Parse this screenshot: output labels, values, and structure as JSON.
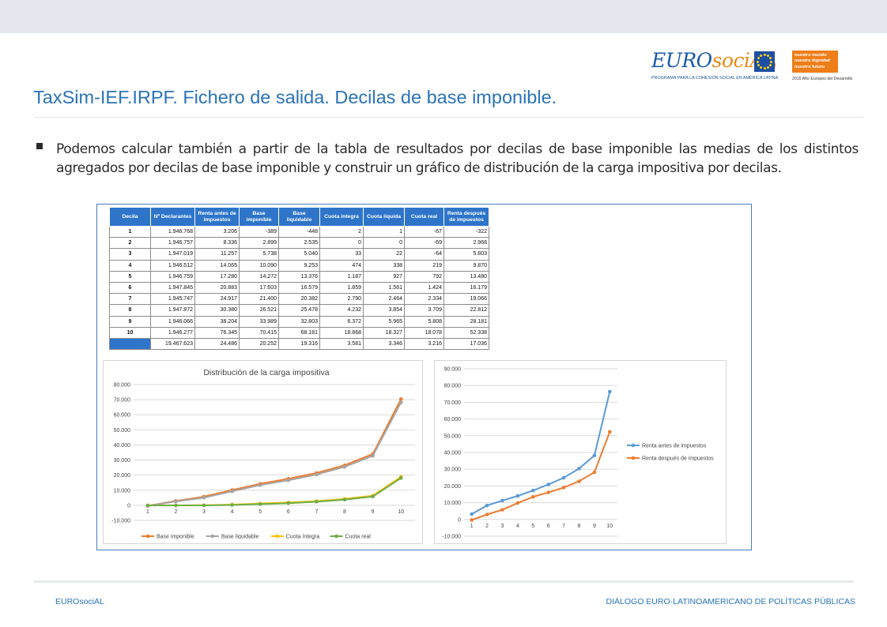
{
  "header": {
    "logo_word_1": "EURO",
    "logo_word_2": "sociAL",
    "logo_sub": "PROGRAMA PARA LA COHESIÓN SOCIAL EN AMÉRICA LATINA",
    "right_logo_lines": [
      "nuestro mundo",
      "nuestra dignidad",
      "nuestro futuro"
    ],
    "right_logo_year": "2015 Año Europeo del Desarrollo"
  },
  "title": "TaxSim-IEF.IRPF. Fichero de salida. Decilas de base imponible.",
  "bullet": "Podemos calcular también a partir de la tabla de resultados por decilas de base imponible las medias de los distintos agregados por decilas de base imponible y construir un gráfico de distribución de la carga  impositiva por decilas.",
  "table": {
    "headers": [
      "Decila",
      "Nº Declarantes",
      "Renta antes de impuestos",
      "Base imponible",
      "Base liquidable",
      "Cuota íntegra",
      "Cuota líquida",
      "Cuota real",
      "Renta después de impuestos"
    ],
    "rows": [
      [
        "1",
        "1.946.768",
        "3.206",
        "-389",
        "-448",
        "2",
        "1",
        "-67",
        "-322"
      ],
      [
        "2",
        "1.946.757",
        "8.336",
        "2.899",
        "2.535",
        "0",
        "0",
        "-69",
        "2.968"
      ],
      [
        "3",
        "1.947.019",
        "11.257",
        "5.738",
        "5.040",
        "33",
        "22",
        "-64",
        "5.803"
      ],
      [
        "4",
        "1.946.512",
        "14.065",
        "10.090",
        "9.253",
        "474",
        "338",
        "219",
        "9.870"
      ],
      [
        "5",
        "1.946.759",
        "17.280",
        "14.272",
        "13.376",
        "1.187",
        "927",
        "792",
        "13.480"
      ],
      [
        "6",
        "1.947.845",
        "20.883",
        "17.603",
        "16.579",
        "1.859",
        "1.561",
        "1.424",
        "16.179"
      ],
      [
        "7",
        "1.945.747",
        "24.917",
        "21.400",
        "20.382",
        "2.790",
        "2.464",
        "2.334",
        "19.066"
      ],
      [
        "8",
        "1.947.872",
        "30.380",
        "26.521",
        "25.478",
        "4.232",
        "3.854",
        "3.709",
        "22.812"
      ],
      [
        "9",
        "1.946.066",
        "38.204",
        "33.989",
        "32.803",
        "6.372",
        "5.965",
        "5.808",
        "28.181"
      ],
      [
        "10",
        "1.946.277",
        "76.345",
        "70.415",
        "68.181",
        "18.868",
        "18.327",
        "18.078",
        "52.338"
      ],
      [
        "",
        "19.467.623",
        "24.486",
        "20.252",
        "19.316",
        "3.581",
        "3.346",
        "3.216",
        "17.036"
      ]
    ]
  },
  "chart_data": [
    {
      "type": "line",
      "title": "Distribución de la carga impositiva",
      "categories": [
        "1",
        "2",
        "3",
        "4",
        "5",
        "6",
        "7",
        "8",
        "9",
        "10"
      ],
      "ylim": [
        -10000,
        80000
      ],
      "yticks": [
        "-10.000",
        "0",
        "10.000",
        "20.000",
        "30.000",
        "40.000",
        "50.000",
        "60.000",
        "70.000",
        "80.000"
      ],
      "grid": true,
      "legend": "bottom",
      "series": [
        {
          "name": "Base imponible",
          "color": "#ed7d31",
          "values": [
            -389,
            2899,
            5738,
            10090,
            14272,
            17603,
            21400,
            26521,
            33989,
            70415
          ]
        },
        {
          "name": "Base liquidable",
          "color": "#a5a5a5",
          "values": [
            -448,
            2535,
            5040,
            9253,
            13376,
            16579,
            20382,
            25478,
            32803,
            68181
          ]
        },
        {
          "name": "Cuota íntegra",
          "color": "#ffc000",
          "values": [
            2,
            0,
            33,
            474,
            1187,
            1859,
            2790,
            4232,
            6372,
            18868
          ]
        },
        {
          "name": "Cuota real",
          "color": "#70ad47",
          "values": [
            -67,
            -69,
            -64,
            219,
            792,
            1424,
            2334,
            3709,
            5808,
            18078
          ]
        }
      ]
    },
    {
      "type": "line",
      "title": "",
      "categories": [
        "1",
        "2",
        "3",
        "4",
        "5",
        "6",
        "7",
        "8",
        "9",
        "10"
      ],
      "ylim": [
        -10000,
        90000
      ],
      "yticks": [
        "-10.000",
        "0",
        "10.000",
        "20.000",
        "30.000",
        "40.000",
        "50.000",
        "60.000",
        "70.000",
        "80.000",
        "90.000"
      ],
      "grid": true,
      "legend": "right",
      "series": [
        {
          "name": "Renta antes de impuestos",
          "color": "#5b9bd5",
          "values": [
            3206,
            8336,
            11257,
            14065,
            17280,
            20883,
            24917,
            30380,
            38204,
            76345
          ]
        },
        {
          "name": "Renta después de impuestos",
          "color": "#ed7d31",
          "values": [
            -322,
            2968,
            5803,
            9870,
            13480,
            16179,
            19066,
            22812,
            28181,
            52338
          ]
        }
      ]
    }
  ],
  "footer": {
    "left": "EUROsociAL",
    "right": "DIÁLOGO EURO-LATINOAMERICANO DE POLÍTICAS PÚBLICAS"
  }
}
